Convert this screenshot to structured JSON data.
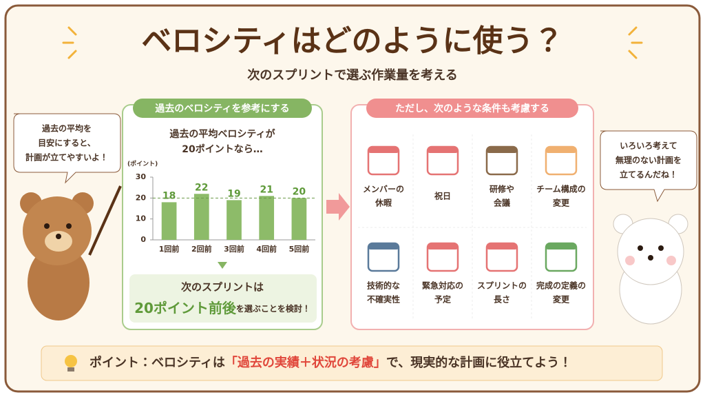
{
  "title": "ベロシティはどのように使う？",
  "subtitle": "次のスプリントで選ぶ作業量を考える",
  "left_bubble": [
    "過去の平均を",
    "目安にすると、",
    "計画が立てやすいよ！"
  ],
  "right_bubble": [
    "いろいろ考えて",
    "無理のない計画を",
    "立てるんだね！"
  ],
  "left_panel": {
    "header": "過去のベロシティを参考にする",
    "lead": [
      "過去の平均ベロシティが",
      "20ポイントなら…"
    ],
    "conclusion": {
      "line1": "次のスプリントは",
      "highlight": "20ポイント前後",
      "rest": "を選ぶことを検討！"
    }
  },
  "chart_data": {
    "type": "bar",
    "y_label": "(ポイント)",
    "categories": [
      "1回前",
      "2回前",
      "3回前",
      "4回前",
      "5回前"
    ],
    "values": [
      18,
      22,
      19,
      21,
      20
    ],
    "color": "#8dbb69",
    "ylim": [
      0,
      30
    ],
    "yticks": [
      0,
      10,
      20,
      30
    ],
    "average_line": 20
  },
  "right_panel": {
    "header": "ただし、次のような条件も考慮する",
    "items": [
      {
        "lines": [
          "メンバーの",
          "休暇"
        ]
      },
      {
        "lines": [
          "祝日"
        ]
      },
      {
        "lines": [
          "研修や",
          "会議"
        ]
      },
      {
        "lines": [
          "チーム構成の",
          "変更"
        ]
      },
      {
        "lines": [
          "技術的な",
          "不確実性"
        ]
      },
      {
        "lines": [
          "緊急対応の",
          "予定"
        ]
      },
      {
        "lines": [
          "スプリントの",
          "長さ"
        ]
      },
      {
        "lines": [
          "完成の定義の",
          "変更"
        ]
      }
    ]
  },
  "footer": {
    "lead": "ポイント：ベロシティは",
    "emphasis": "「過去の実績＋状況の考慮」",
    "tail": "で、現実的な計画に役立てよう！"
  }
}
